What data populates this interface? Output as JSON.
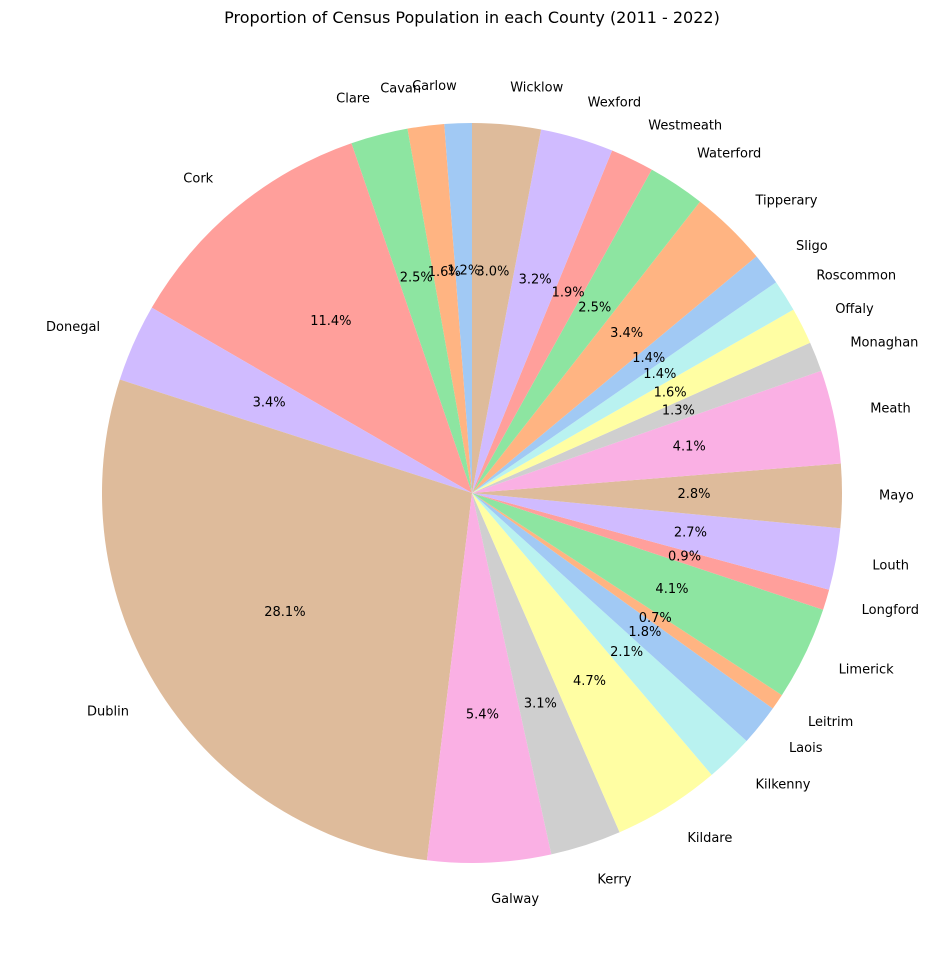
{
  "chart_data": {
    "type": "pie",
    "title": "Proportion of Census Population in each County (2011 - 2022)",
    "start_angle_deg": 90,
    "direction": "counterclockwise",
    "palette": [
      "#a1c9f4",
      "#ffb482",
      "#8de5a1",
      "#ff9f9b",
      "#d0bbff",
      "#debb9b",
      "#fab0e4",
      "#cfcfcf",
      "#fffea3",
      "#b9f2f0"
    ],
    "slices": [
      {
        "label": "Carlow",
        "value": 1.2,
        "pct_label": "1.2%"
      },
      {
        "label": "Cavan",
        "value": 1.6,
        "pct_label": "1.6%"
      },
      {
        "label": "Clare",
        "value": 2.5,
        "pct_label": "2.5%"
      },
      {
        "label": "Cork",
        "value": 11.4,
        "pct_label": "11.4%"
      },
      {
        "label": "Donegal",
        "value": 3.4,
        "pct_label": "3.4%"
      },
      {
        "label": "Dublin",
        "value": 28.1,
        "pct_label": "28.1%"
      },
      {
        "label": "Galway",
        "value": 5.4,
        "pct_label": "5.4%"
      },
      {
        "label": "Kerry",
        "value": 3.1,
        "pct_label": "3.1%"
      },
      {
        "label": "Kildare",
        "value": 4.7,
        "pct_label": "4.7%"
      },
      {
        "label": "Kilkenny",
        "value": 2.1,
        "pct_label": "2.1%"
      },
      {
        "label": "Laois",
        "value": 1.8,
        "pct_label": "1.8%"
      },
      {
        "label": "Leitrim",
        "value": 0.7,
        "pct_label": "0.7%"
      },
      {
        "label": "Limerick",
        "value": 4.1,
        "pct_label": "4.1%"
      },
      {
        "label": "Longford",
        "value": 0.9,
        "pct_label": "0.9%"
      },
      {
        "label": "Louth",
        "value": 2.7,
        "pct_label": "2.7%"
      },
      {
        "label": "Mayo",
        "value": 2.8,
        "pct_label": "2.8%"
      },
      {
        "label": "Meath",
        "value": 4.1,
        "pct_label": "4.1%"
      },
      {
        "label": "Monaghan",
        "value": 1.3,
        "pct_label": "1.3%"
      },
      {
        "label": "Offaly",
        "value": 1.6,
        "pct_label": "1.6%"
      },
      {
        "label": "Roscommon",
        "value": 1.4,
        "pct_label": "1.4%"
      },
      {
        "label": "Sligo",
        "value": 1.4,
        "pct_label": "1.4%"
      },
      {
        "label": "Tipperary",
        "value": 3.4,
        "pct_label": "3.4%"
      },
      {
        "label": "Waterford",
        "value": 2.5,
        "pct_label": "2.5%"
      },
      {
        "label": "Westmeath",
        "value": 1.9,
        "pct_label": "1.9%"
      },
      {
        "label": "Wexford",
        "value": 3.2,
        "pct_label": "3.2%"
      },
      {
        "label": "Wicklow",
        "value": 3.0,
        "pct_label": "3.0%"
      }
    ]
  }
}
